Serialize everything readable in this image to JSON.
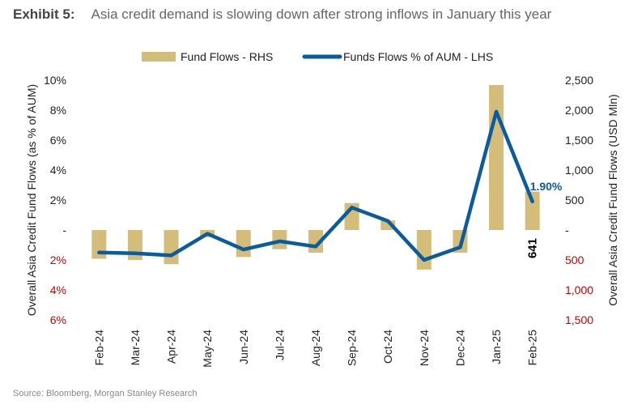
{
  "header": {
    "exhibit": "Exhibit 5:",
    "title": "Asia credit demand is slowing down after strong inflows in January this year"
  },
  "source": "Source: Bloomberg, Morgan Stanley Research",
  "colors": {
    "bar": "#D4BD7B",
    "line": "#0A5C9C",
    "negative_tick": "#CC0000",
    "tick": "#222222",
    "bar_label": "#000000"
  },
  "chart_data": {
    "type": "bar+line",
    "categories": [
      "Feb-24",
      "Mar-24",
      "Apr-24",
      "May-24",
      "Jun-24",
      "Jul-24",
      "Aug-24",
      "Sep-24",
      "Oct-24",
      "Nov-24",
      "Dec-24",
      "Jan-25",
      "Feb-25"
    ],
    "series": [
      {
        "name": "Fund Flows - RHS",
        "type": "bar",
        "axis": "right",
        "unit": "USD Mln",
        "values": [
          -480,
          -500,
          -570,
          -120,
          -450,
          -320,
          -380,
          450,
          160,
          -660,
          -380,
          2420,
          641
        ]
      },
      {
        "name": "Funds Flows % of AUM - LHS",
        "type": "line",
        "axis": "left",
        "unit": "%",
        "values": [
          -1.5,
          -1.55,
          -1.7,
          -0.25,
          -1.3,
          -0.75,
          -1.1,
          1.5,
          0.6,
          -2.0,
          -1.15,
          7.9,
          1.9
        ]
      }
    ],
    "left_axis": {
      "label": "Overall Asia Credit Fund Flows (as % of AUM)",
      "range": [
        -6,
        10
      ],
      "ticks": [
        10,
        8,
        6,
        4,
        2,
        0,
        -2,
        -4,
        -6
      ],
      "tick_labels": [
        "10%",
        "8%",
        "6%",
        "4%",
        "2%",
        "-",
        "2%",
        "4%",
        "6%"
      ]
    },
    "right_axis": {
      "label": "Overall Asia Credit Fund Flows (USD Mln)",
      "range": [
        -1500,
        2500
      ],
      "ticks": [
        2500,
        2000,
        1500,
        1000,
        500,
        0,
        -500,
        -1000,
        -1500
      ],
      "tick_labels": [
        "2,500",
        "2,000",
        "1,500",
        "1,000",
        "500",
        "-",
        "500",
        "1,000",
        "1,500"
      ]
    },
    "annotations": [
      {
        "series": 1,
        "index": 12,
        "text": "1.90%"
      },
      {
        "series": 0,
        "index": 12,
        "text": "641"
      }
    ],
    "legend": {
      "position": "top-center"
    }
  }
}
